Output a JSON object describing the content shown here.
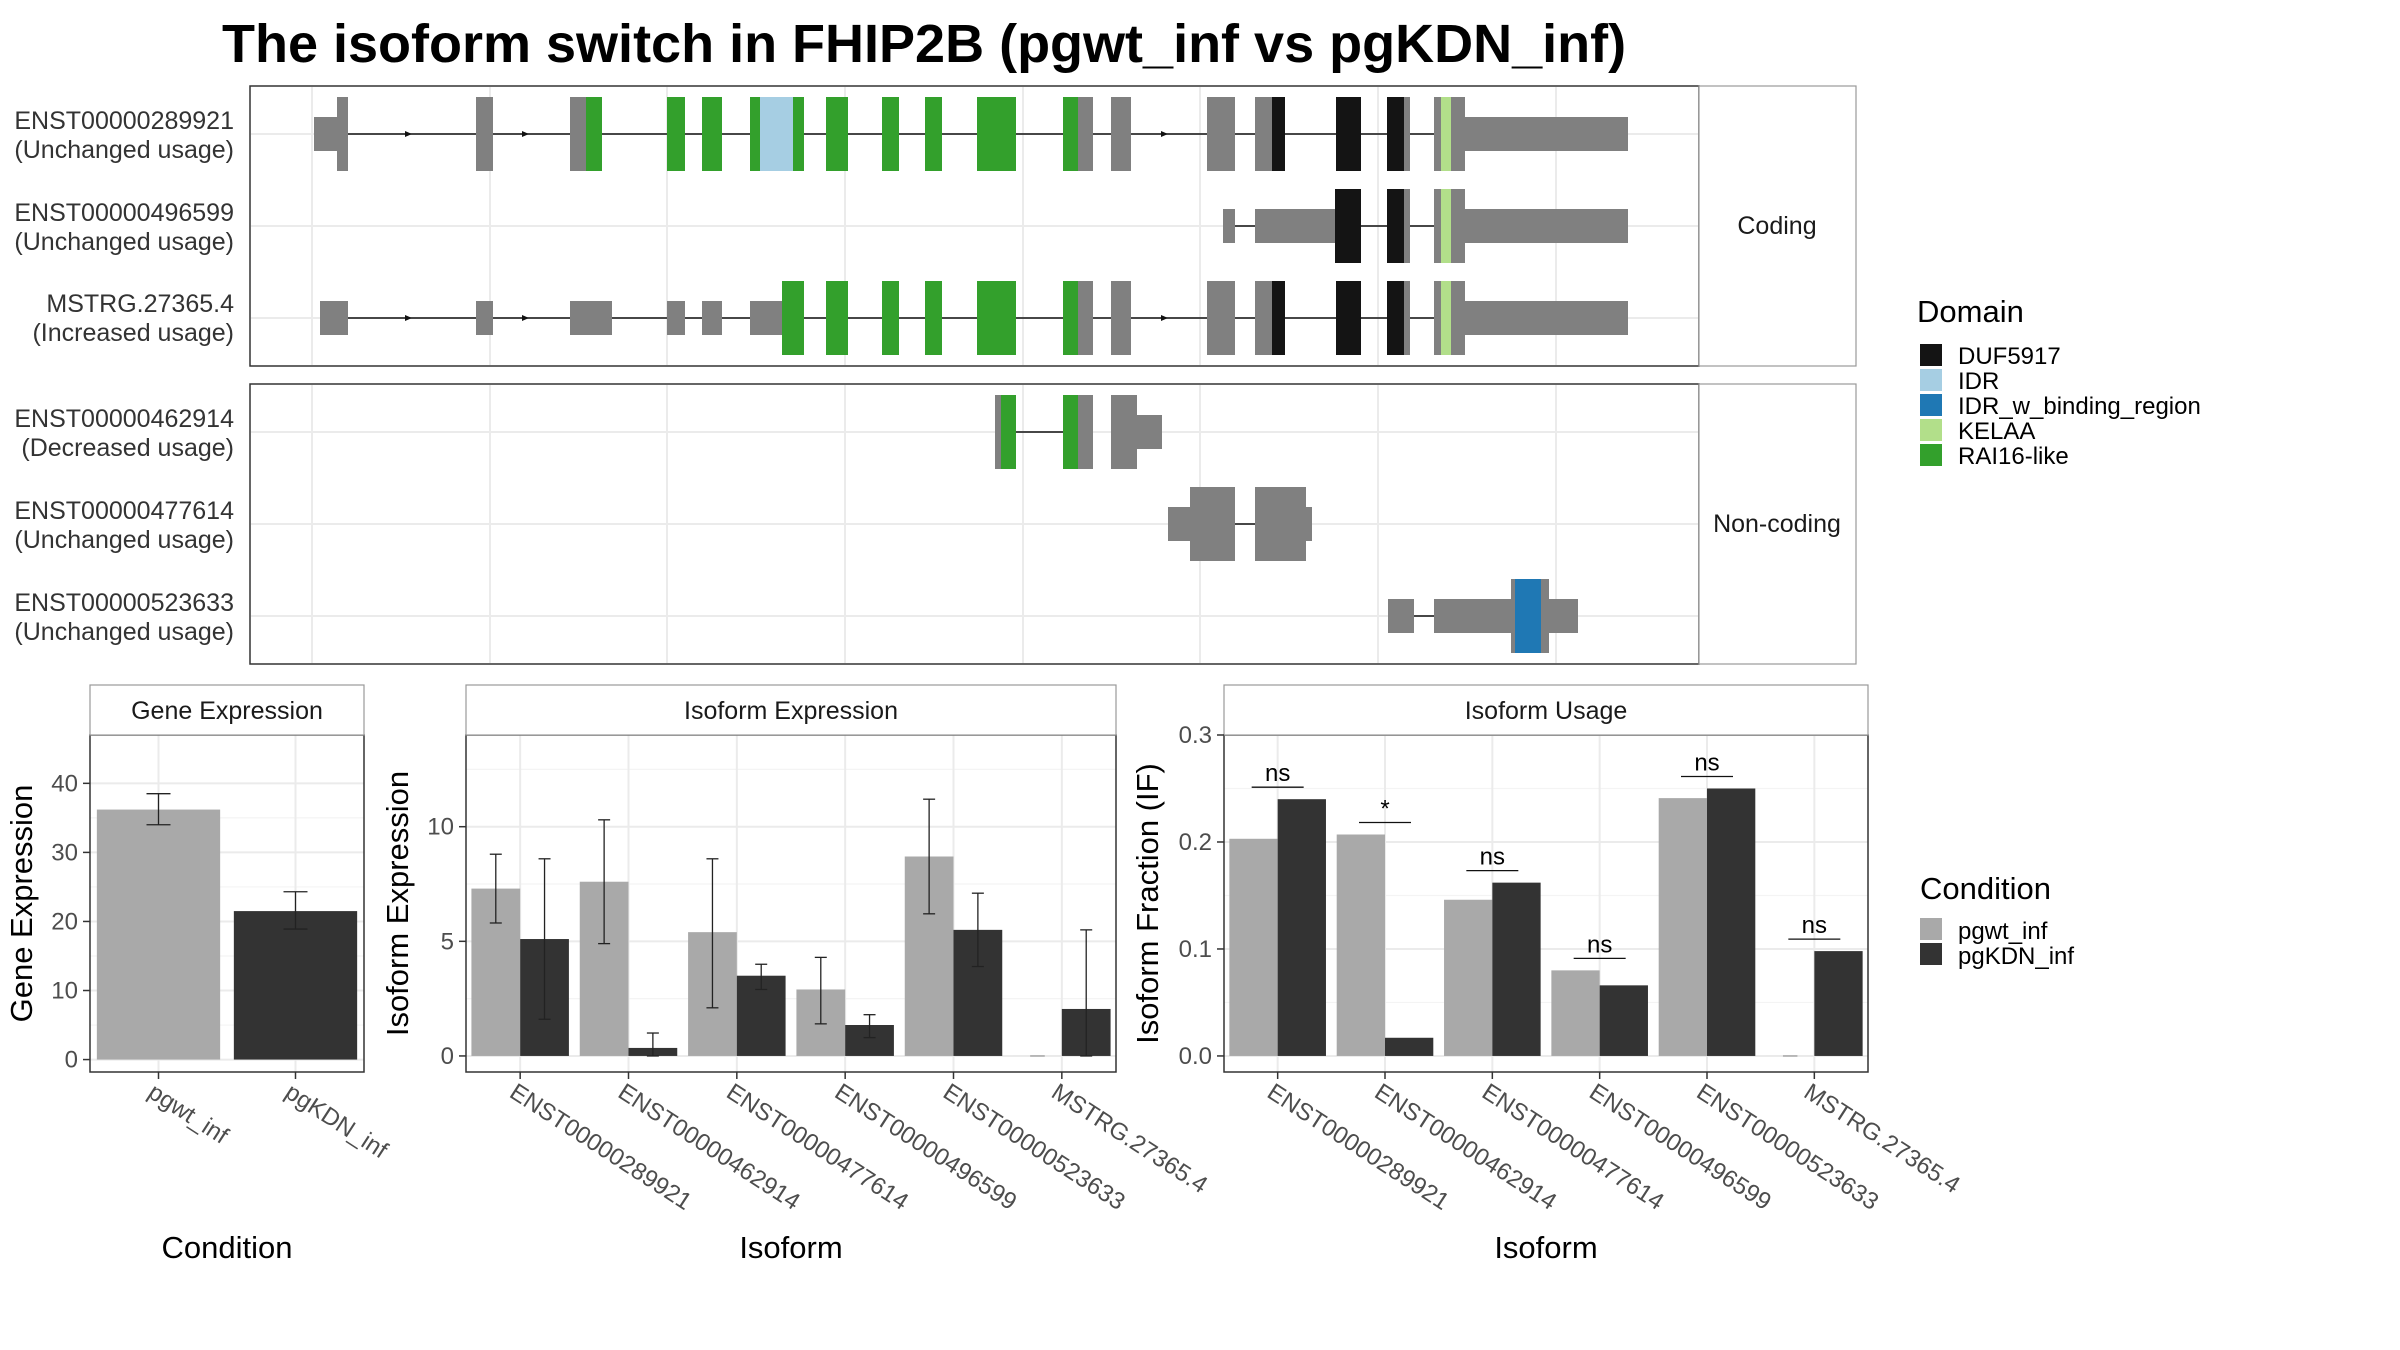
{
  "title": "The isoform switch in FHIP2B (pgwt_inf vs pgKDN_inf)",
  "colors": {
    "exon": "#808080",
    "DUF5917": "#141414",
    "IDR": "#a6cee3",
    "IDR_w_binding_region": "#1f78b4",
    "KELAA": "#b2df8a",
    "RAI16-like": "#33a02c",
    "pgwt_inf": "#a9a9a9",
    "pgKDN_inf": "#333333"
  },
  "structure": {
    "groups": [
      {
        "label": "Coding",
        "transcripts": [
          {
            "id": "ENST00000289921",
            "usage": "(Unchanged usage)"
          },
          {
            "id": "ENST00000496599",
            "usage": "(Unchanged usage)"
          },
          {
            "id": "MSTRG.27365.4",
            "usage": "(Increased usage)"
          }
        ]
      },
      {
        "label": "Non-coding",
        "transcripts": [
          {
            "id": "ENST00000462914",
            "usage": "(Decreased usage)"
          },
          {
            "id": "ENST00000477614",
            "usage": "(Unchanged usage)"
          },
          {
            "id": "ENST00000523633",
            "usage": "(Unchanged usage)"
          }
        ]
      }
    ],
    "domain_legend_title": "Domain",
    "domains": [
      "DUF5917",
      "IDR",
      "IDR_w_binding_region",
      "KELAA",
      "RAI16-like"
    ]
  },
  "condition_legend": {
    "title": "Condition",
    "items": [
      "pgwt_inf",
      "pgKDN_inf"
    ]
  },
  "chart_data": [
    {
      "type": "bar",
      "title": "Gene Expression",
      "categories": [
        "pgwt_inf",
        "pgKDN_inf"
      ],
      "values": [
        36.2,
        21.5
      ],
      "error_low": [
        34.0,
        18.9
      ],
      "error_high": [
        38.5,
        24.3
      ],
      "xlabel": "Condition",
      "ylabel": "Gene Expression",
      "ylim": [
        -1.8,
        47
      ],
      "yticks": [
        0,
        10,
        20,
        30,
        40
      ]
    },
    {
      "type": "bar",
      "title": "Isoform Expression",
      "categories": [
        "ENST00000289921",
        "ENST00000462914",
        "ENST00000477614",
        "ENST00000496599",
        "ENST00000523633",
        "MSTRG.27365.4"
      ],
      "series": [
        {
          "name": "pgwt_inf",
          "values": [
            7.3,
            7.6,
            5.4,
            2.9,
            8.7,
            0.0
          ],
          "error_low": [
            5.8,
            4.9,
            2.1,
            1.4,
            6.2,
            0.0
          ],
          "error_high": [
            8.8,
            10.3,
            8.6,
            4.3,
            11.2,
            0.0
          ]
        },
        {
          "name": "pgKDN_inf",
          "values": [
            5.1,
            0.35,
            3.5,
            1.35,
            5.5,
            2.05
          ],
          "error_low": [
            1.6,
            0.0,
            2.9,
            0.8,
            3.9,
            0.0
          ],
          "error_high": [
            8.6,
            1.0,
            4.0,
            1.8,
            7.1,
            5.5
          ]
        }
      ],
      "xlabel": "Isoform",
      "ylabel": "Isoform Expression",
      "ylim": [
        -0.7,
        14.0
      ],
      "yticks": [
        0,
        5,
        10
      ]
    },
    {
      "type": "bar",
      "title": "Isoform Usage",
      "categories": [
        "ENST00000289921",
        "ENST00000462914",
        "ENST00000477614",
        "ENST00000496599",
        "ENST00000523633",
        "MSTRG.27365.4"
      ],
      "series": [
        {
          "name": "pgwt_inf",
          "values": [
            0.203,
            0.207,
            0.146,
            0.08,
            0.241,
            0.0
          ]
        },
        {
          "name": "pgKDN_inf",
          "values": [
            0.24,
            0.017,
            0.162,
            0.066,
            0.25,
            0.098
          ]
        }
      ],
      "significance": [
        "ns",
        "*",
        "ns",
        "ns",
        "ns",
        "ns"
      ],
      "xlabel": "Isoform",
      "ylabel": "Isoform Fraction (IF)",
      "ylim": [
        -0.015,
        0.3
      ],
      "yticks": [
        0.0,
        0.1,
        0.2,
        0.3
      ],
      "ytick_labels": [
        "0.0",
        "0.1",
        "0.2",
        "0.3"
      ]
    }
  ]
}
